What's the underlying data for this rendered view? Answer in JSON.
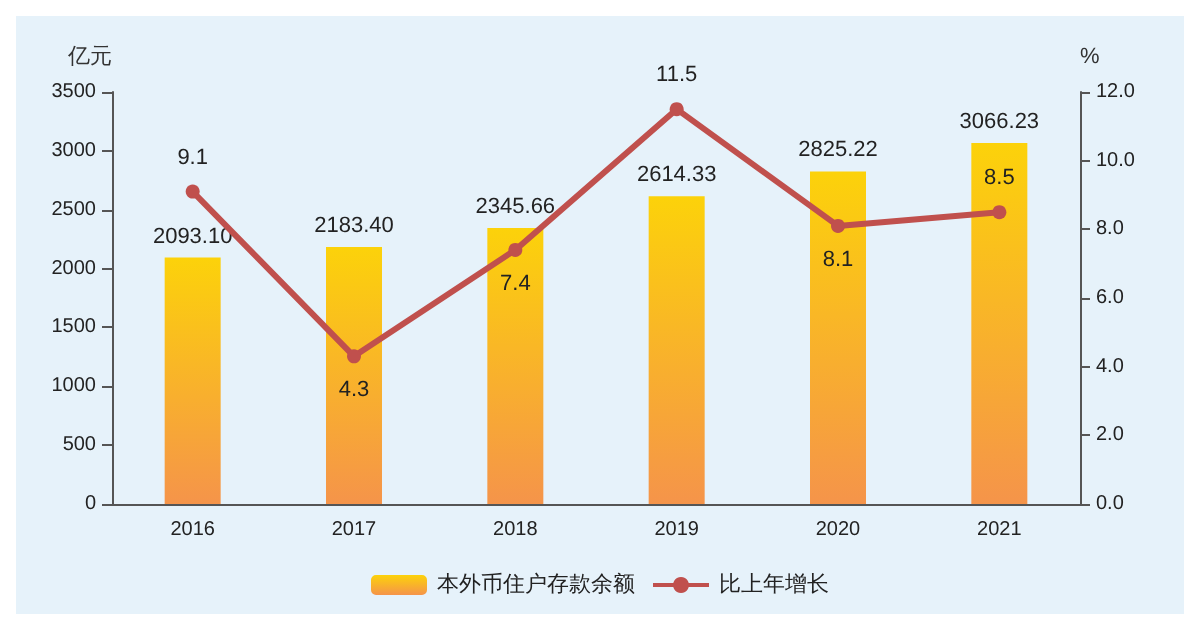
{
  "chart_data": {
    "type": "bar",
    "categories": [
      "2016",
      "2017",
      "2018",
      "2019",
      "2020",
      "2021"
    ],
    "series": [
      {
        "name": "本外币住户存款余额",
        "color": "#fcd20a",
        "values": [
          2093.1,
          2183.4,
          2345.66,
          2614.33,
          2825.22,
          3066.23
        ],
        "value_labels": [
          "2093.10",
          "2183.40",
          "2345.66",
          "2614.33",
          "2825.22",
          "3066.23"
        ]
      },
      {
        "name": "比上年增长",
        "type": "line",
        "axis": "y2",
        "color": "#c0504d",
        "values": [
          9.1,
          4.3,
          7.4,
          11.5,
          8.1,
          8.5
        ]
      }
    ],
    "ylabel": "亿元",
    "y2label": "%",
    "ylim": [
      0,
      3500
    ],
    "yticks": [
      0,
      500,
      1000,
      1500,
      2000,
      2500,
      3000,
      3500
    ],
    "y2lim": [
      0,
      12
    ],
    "y2ticks": [
      {
        "value": 0,
        "label": "0.0"
      },
      {
        "value": 2,
        "label": "2.0"
      },
      {
        "value": 4,
        "label": "4.0"
      },
      {
        "value": 6,
        "label": "6.0"
      },
      {
        "value": 8,
        "label": "8.0"
      },
      {
        "value": 10,
        "label": "10.0"
      },
      {
        "value": 12,
        "label": "12.0"
      }
    ],
    "data_labels": true,
    "legend": "bottom",
    "marker": "circle",
    "grid": false
  }
}
